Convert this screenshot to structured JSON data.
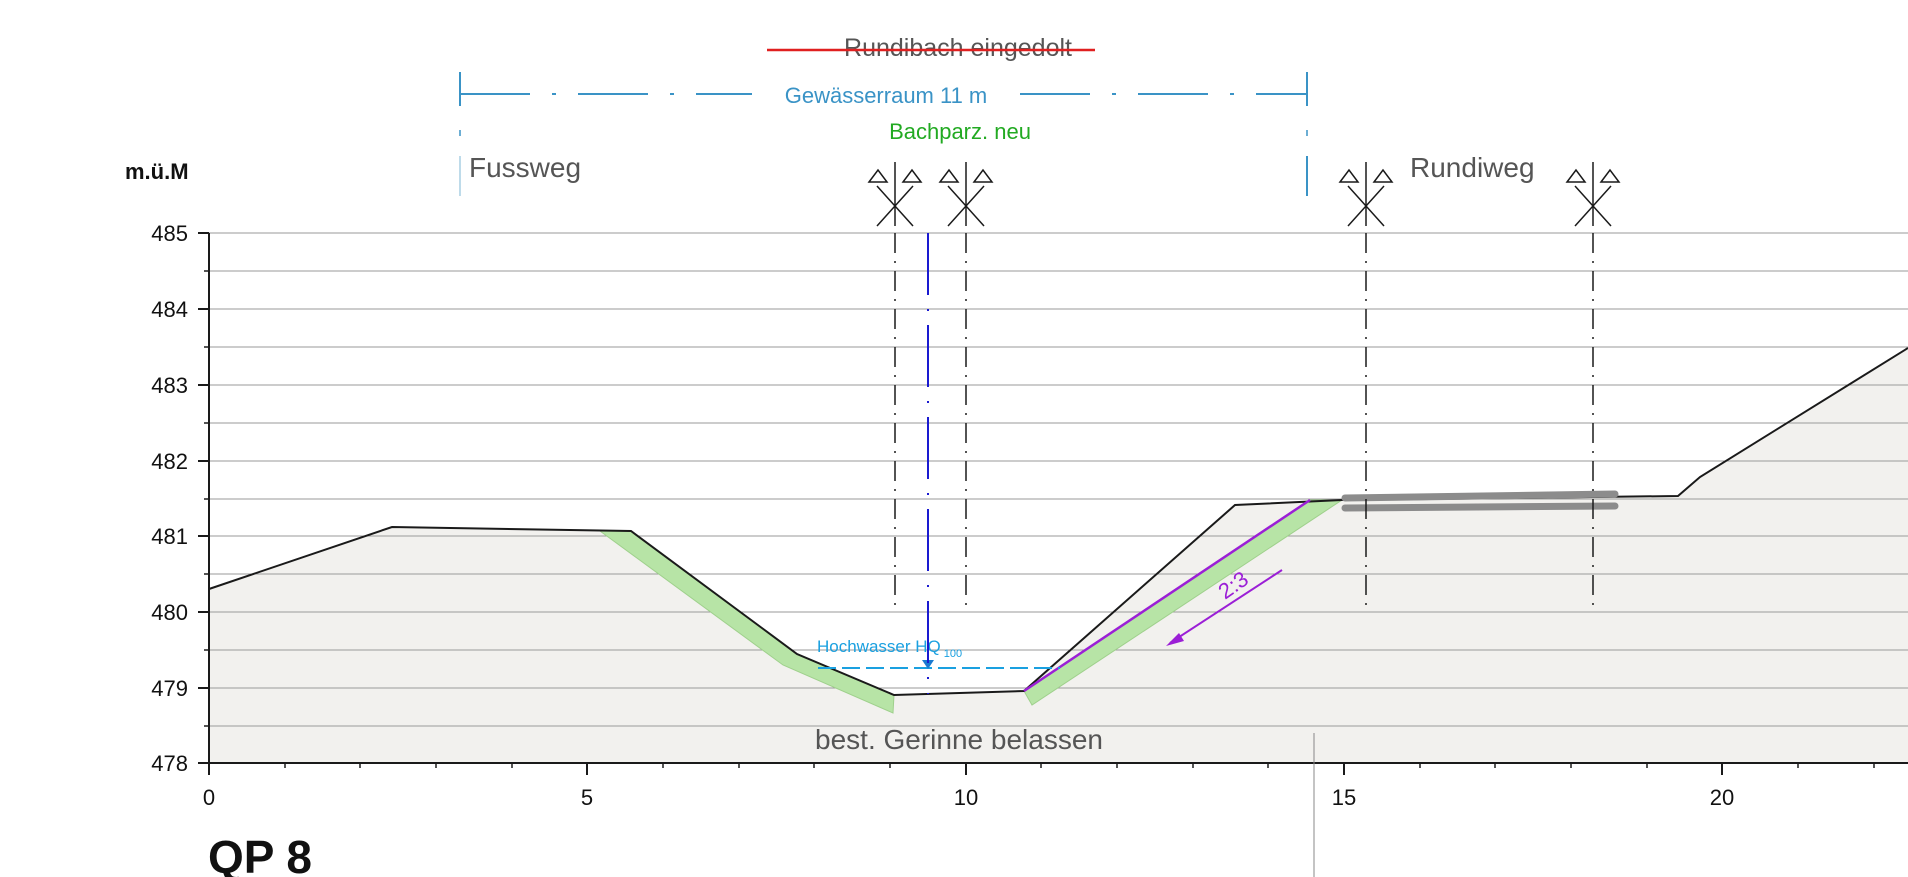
{
  "header": {
    "struck_title": "Rundibach eingedolt",
    "gewaesserraum": "Gewässerraum 11 m",
    "bachparzelle": "Bachparz. neu"
  },
  "paths": {
    "left": "Fussweg",
    "right": "Rundiweg"
  },
  "axis": {
    "unit_label": "m.ü.M",
    "y_ticks": [
      "478",
      "479",
      "480",
      "481",
      "482",
      "483",
      "484",
      "485"
    ],
    "x_ticks": [
      "0",
      "5",
      "10",
      "15",
      "20"
    ]
  },
  "annotations": {
    "flood_label": "Hochwasser HQ",
    "flood_subscript": "100",
    "slope_ratio": "2:3",
    "channel_note": "best. Gerinne belassen"
  },
  "section_title": "QP 8",
  "chart_data": {
    "type": "line",
    "title": "QP 8",
    "ylabel": "m.ü.M",
    "xlim": [
      0,
      22.5
    ],
    "ylim": [
      478,
      485
    ],
    "series": [
      {
        "x": [
          0,
          2.5,
          5.6,
          7.8,
          9.2,
          10.8,
          13.5,
          15,
          19.5,
          19.8,
          22.5
        ],
        "y": [
          480.3,
          481.12,
          481.07,
          479.45,
          478.9,
          478.95,
          481.4,
          481.5,
          481.55,
          481.8,
          483.5
        ]
      }
    ],
    "flood_level": 479.28,
    "slope": "2:3",
    "colors": {
      "terrain": "#1a1a1a",
      "ground_fill": "#f2f1ee",
      "planting": "#b7e4a6",
      "gewaesserraum": "#3a93c6",
      "bachparzelle": "#22aa22",
      "strike": "#e02020",
      "stream_axis": "#1a1ad0",
      "slope": "#9b1fd6",
      "flood": "#1aa0e0"
    }
  }
}
